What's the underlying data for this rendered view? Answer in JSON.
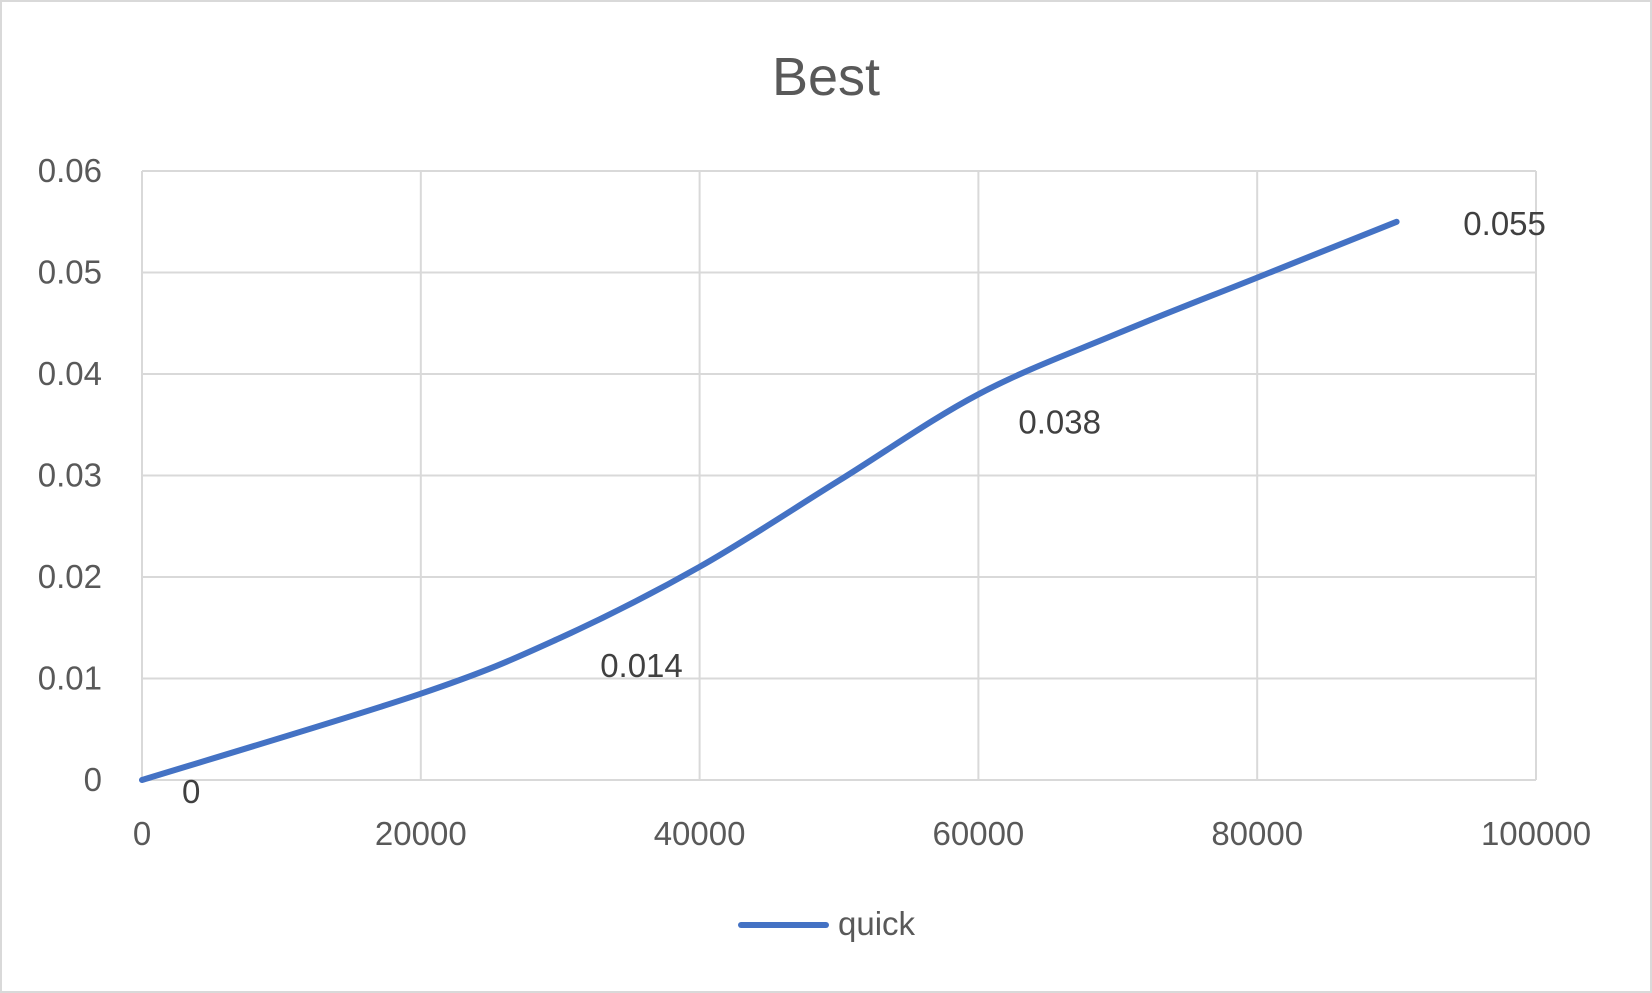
{
  "chart_data": {
    "type": "line",
    "title": "Best",
    "xlabel": "",
    "ylabel": "",
    "xlim": [
      0,
      100000
    ],
    "ylim": [
      0,
      0.06
    ],
    "x_ticks": [
      "0",
      "20000",
      "40000",
      "60000",
      "80000",
      "100000"
    ],
    "y_ticks": [
      "0",
      "0.01",
      "0.02",
      "0.03",
      "0.04",
      "0.05",
      "0.06"
    ],
    "grid": true,
    "legend_position": "bottom",
    "smooth": true,
    "series": [
      {
        "name": "quick",
        "color": "#4472c4",
        "points": [
          {
            "x": 0,
            "y": 0,
            "label": "0"
          },
          {
            "x": 20000,
            "y": 0.0085
          },
          {
            "x": 30000,
            "y": 0.014,
            "label": "0.014"
          },
          {
            "x": 40000,
            "y": 0.021
          },
          {
            "x": 50000,
            "y": 0.0295
          },
          {
            "x": 60000,
            "y": 0.038,
            "label": "0.038"
          },
          {
            "x": 70000,
            "y": 0.044
          },
          {
            "x": 80000,
            "y": 0.0495
          },
          {
            "x": 90000,
            "y": 0.055,
            "label": "0.055"
          }
        ]
      }
    ]
  }
}
